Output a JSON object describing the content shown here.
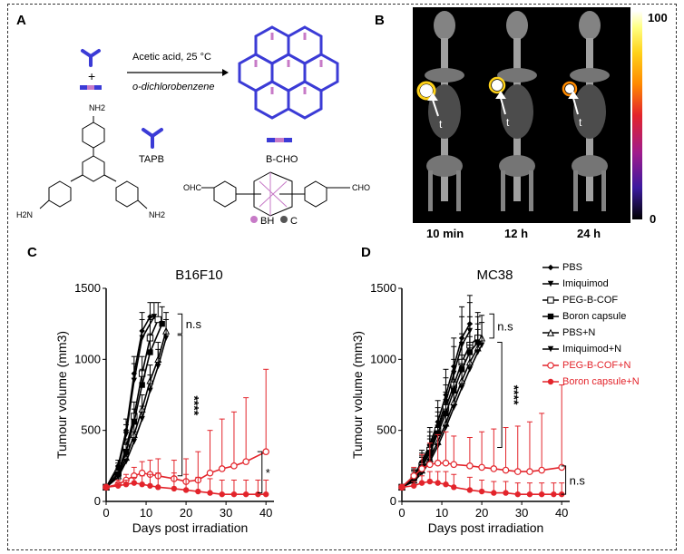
{
  "panels": {
    "a": {
      "label": "A",
      "reaction_top": "Acetic acid, 25 °C",
      "reaction_bottom": "o-dichlorobenzene",
      "plus": "+",
      "tapb": "TAPB",
      "bcho": "B-CHO",
      "nh2_top": "NH2",
      "nh2_left": "H2N",
      "nh2_right": "NH2",
      "cho_left": "OHC",
      "cho_right": "CHO",
      "bh_label": "BH",
      "c_label": "C",
      "colors": {
        "blue": "#3b3bd6",
        "pink": "#c77ac7"
      }
    },
    "b": {
      "label": "B",
      "times": [
        "10 min",
        "12 h",
        "24 h"
      ],
      "tumor_marker": "t",
      "colorbar_max": "100",
      "colorbar_min": "0"
    },
    "c": {
      "label": "C"
    },
    "d": {
      "label": "D"
    }
  },
  "chart_data": [
    {
      "type": "line",
      "title": "B16F10",
      "xlabel": "Days post irradiation",
      "ylabel": "Tumour volume (mm3)",
      "xlim": [
        0,
        42
      ],
      "ylim": [
        0,
        1500
      ],
      "xticks": [
        0,
        10,
        20,
        30,
        40
      ],
      "yticks": [
        0,
        500,
        1000,
        1500
      ],
      "significance": [
        {
          "label": "n.s",
          "y_from": 1320,
          "y_to": 1180
        },
        {
          "label": "****",
          "y_from": 1170,
          "y_to": 180
        },
        {
          "label": "*",
          "y_from": 350,
          "y_to": 60
        }
      ],
      "series": [
        {
          "name": "PBS",
          "color": "#000000",
          "x": [
            0,
            3,
            5,
            7,
            9,
            11
          ],
          "y": [
            100,
            250,
            500,
            900,
            1200,
            1300
          ],
          "err": [
            10,
            40,
            80,
            120,
            130,
            100
          ]
        },
        {
          "name": "Imiquimod",
          "color": "#000000",
          "x": [
            0,
            3,
            5,
            7,
            9,
            12
          ],
          "y": [
            100,
            230,
            470,
            850,
            1150,
            1300
          ],
          "err": [
            10,
            40,
            70,
            120,
            130,
            100
          ]
        },
        {
          "name": "PEG-B-COF",
          "color": "#000000",
          "x": [
            0,
            3,
            5,
            7,
            9,
            11,
            13
          ],
          "y": [
            100,
            200,
            380,
            600,
            900,
            1150,
            1280
          ],
          "err": [
            10,
            35,
            60,
            100,
            120,
            130,
            120
          ]
        },
        {
          "name": "Boron capsule",
          "color": "#000000",
          "x": [
            0,
            3,
            5,
            7,
            9,
            11,
            14
          ],
          "y": [
            100,
            190,
            350,
            560,
            820,
            1050,
            1250
          ],
          "err": [
            10,
            30,
            60,
            90,
            110,
            130,
            120
          ]
        },
        {
          "name": "PBS+N",
          "color": "#000000",
          "x": [
            0,
            3,
            5,
            7,
            9,
            11,
            13,
            15
          ],
          "y": [
            100,
            180,
            310,
            470,
            650,
            850,
            1000,
            1200
          ],
          "err": [
            10,
            30,
            50,
            80,
            100,
            110,
            120,
            130
          ]
        },
        {
          "name": "Imiquimod+N",
          "color": "#000000",
          "x": [
            0,
            3,
            5,
            7,
            9,
            11,
            13,
            15
          ],
          "y": [
            100,
            170,
            280,
            420,
            580,
            780,
            950,
            1150
          ],
          "err": [
            10,
            30,
            50,
            70,
            90,
            110,
            120,
            130
          ]
        },
        {
          "name": "PEG-B-COF+N",
          "color": "#e3242b",
          "x": [
            0,
            3,
            5,
            7,
            9,
            11,
            13,
            17,
            20,
            23,
            26,
            29,
            32,
            35,
            40
          ],
          "y": [
            100,
            120,
            150,
            180,
            200,
            190,
            180,
            160,
            140,
            150,
            200,
            230,
            250,
            280,
            350
          ],
          "err": [
            10,
            30,
            40,
            60,
            80,
            100,
            120,
            130,
            160,
            200,
            300,
            350,
            380,
            450,
            580
          ]
        },
        {
          "name": "Boron capsule+N",
          "color": "#e3242b",
          "x": [
            0,
            3,
            5,
            7,
            9,
            11,
            13,
            17,
            20,
            23,
            26,
            29,
            32,
            35,
            38,
            40
          ],
          "y": [
            100,
            110,
            120,
            130,
            120,
            110,
            100,
            90,
            80,
            70,
            60,
            50,
            50,
            50,
            50,
            50
          ],
          "err": [
            10,
            20,
            30,
            40,
            60,
            80,
            100,
            110,
            110,
            100,
            100,
            100,
            100,
            100,
            100,
            100
          ]
        }
      ]
    },
    {
      "type": "line",
      "title": "MC38",
      "xlabel": "Days post irradiation",
      "ylabel": "Tumour volume (mm3)",
      "xlim": [
        0,
        42
      ],
      "ylim": [
        0,
        1500
      ],
      "xticks": [
        0,
        10,
        20,
        30,
        40
      ],
      "yticks": [
        0,
        500,
        1000,
        1500
      ],
      "significance": [
        {
          "label": "n.s",
          "y_from": 1320,
          "y_to": 1150
        },
        {
          "label": "****",
          "y_from": 1120,
          "y_to": 380
        },
        {
          "label": "n.s",
          "y_from": 250,
          "y_to": 50
        }
      ],
      "series": [
        {
          "name": "PBS",
          "color": "#000000",
          "x": [
            0,
            3,
            5,
            7,
            9,
            11,
            13,
            15,
            17
          ],
          "y": [
            100,
            180,
            280,
            400,
            560,
            750,
            950,
            1150,
            1250
          ],
          "err": [
            10,
            50,
            80,
            120,
            150,
            180,
            200,
            220,
            200
          ]
        },
        {
          "name": "Imiquimod",
          "color": "#000000",
          "x": [
            0,
            3,
            5,
            7,
            9,
            11,
            13,
            15,
            17
          ],
          "y": [
            100,
            170,
            260,
            380,
            520,
            700,
            900,
            1100,
            1200
          ],
          "err": [
            10,
            50,
            80,
            110,
            140,
            170,
            190,
            200,
            200
          ]
        },
        {
          "name": "PEG-B-COF",
          "color": "#000000",
          "x": [
            0,
            3,
            5,
            7,
            9,
            11,
            13,
            15,
            17,
            19
          ],
          "y": [
            100,
            170,
            250,
            360,
            500,
            660,
            820,
            980,
            1100,
            1150
          ],
          "err": [
            10,
            50,
            70,
            100,
            130,
            160,
            180,
            200,
            200,
            180
          ]
        },
        {
          "name": "Boron capsule",
          "color": "#000000",
          "x": [
            0,
            3,
            5,
            7,
            9,
            11,
            13,
            15,
            17,
            19
          ],
          "y": [
            100,
            160,
            240,
            340,
            480,
            620,
            780,
            930,
            1050,
            1120
          ],
          "err": [
            10,
            50,
            70,
            100,
            120,
            150,
            170,
            190,
            200,
            180
          ]
        },
        {
          "name": "PBS+N",
          "color": "#000000",
          "x": [
            0,
            3,
            5,
            7,
            9,
            11,
            13,
            15,
            17,
            19,
            20
          ],
          "y": [
            100,
            150,
            220,
            300,
            420,
            550,
            700,
            850,
            980,
            1080,
            1150
          ],
          "err": [
            10,
            40,
            60,
            90,
            110,
            140,
            160,
            180,
            180,
            170,
            160
          ]
        },
        {
          "name": "Imiquimod+N",
          "color": "#000000",
          "x": [
            0,
            3,
            5,
            7,
            9,
            11,
            13,
            15,
            17,
            19,
            20
          ],
          "y": [
            100,
            140,
            200,
            280,
            390,
            520,
            660,
            800,
            930,
            1050,
            1100
          ],
          "err": [
            10,
            40,
            60,
            80,
            100,
            130,
            150,
            170,
            170,
            160,
            160
          ]
        },
        {
          "name": "PEG-B-COF+N",
          "color": "#e3242b",
          "x": [
            0,
            3,
            5,
            7,
            9,
            11,
            13,
            17,
            20,
            23,
            26,
            29,
            32,
            35,
            40
          ],
          "y": [
            100,
            180,
            230,
            260,
            270,
            270,
            260,
            250,
            240,
            230,
            220,
            210,
            210,
            220,
            240
          ],
          "err": [
            10,
            60,
            100,
            150,
            200,
            220,
            200,
            200,
            250,
            280,
            300,
            320,
            350,
            400,
            580
          ]
        },
        {
          "name": "Boron capsule+N",
          "color": "#e3242b",
          "x": [
            0,
            3,
            5,
            7,
            9,
            11,
            13,
            17,
            20,
            23,
            26,
            29,
            32,
            35,
            38,
            40
          ],
          "y": [
            100,
            110,
            130,
            140,
            130,
            120,
            100,
            80,
            70,
            60,
            60,
            50,
            50,
            50,
            50,
            50
          ],
          "err": [
            10,
            30,
            50,
            70,
            80,
            90,
            90,
            90,
            80,
            80,
            80,
            80,
            80,
            80,
            80,
            80
          ]
        }
      ]
    }
  ],
  "legend": [
    {
      "name": "PBS",
      "color": "#000000",
      "marker": "diamond"
    },
    {
      "name": "Imiquimod",
      "color": "#000000",
      "marker": "triangle-down-filled"
    },
    {
      "name": "PEG-B-COF",
      "color": "#000000",
      "marker": "square-open"
    },
    {
      "name": "Boron capsule",
      "color": "#000000",
      "marker": "square-filled"
    },
    {
      "name": "PBS+N",
      "color": "#000000",
      "marker": "triangle-open"
    },
    {
      "name": "Imiquimod+N",
      "color": "#000000",
      "marker": "triangle-down-filled"
    },
    {
      "name": "PEG-B-COF+N",
      "color": "#e3242b",
      "marker": "circle-open"
    },
    {
      "name": "Boron capsule+N",
      "color": "#e3242b",
      "marker": "circle-filled"
    }
  ]
}
